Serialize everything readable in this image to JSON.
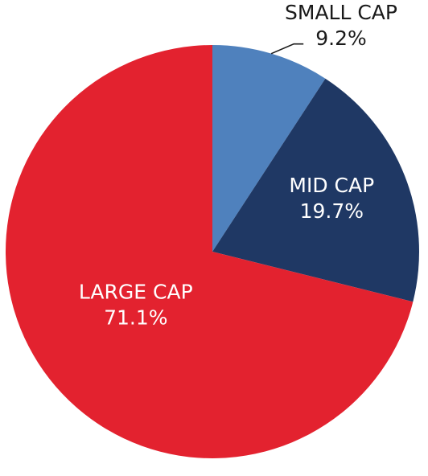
{
  "chart_data": {
    "type": "pie",
    "title": "",
    "slices": [
      {
        "label": "SMALL CAP",
        "value": 9.2,
        "value_label": "9.2%",
        "color": "#4f81bd",
        "label_color": "#1a1a1a",
        "label_placement": "outside-callout"
      },
      {
        "label": "MID CAP",
        "value": 19.7,
        "value_label": "19.7%",
        "color": "#1f3864",
        "label_color": "#ffffff",
        "label_placement": "inside"
      },
      {
        "label": "LARGE CAP",
        "value": 71.1,
        "value_label": "71.1%",
        "color": "#e3222f",
        "label_color": "#ffffff",
        "label_placement": "inside"
      }
    ],
    "start_angle": "12 o'clock",
    "direction": "clockwise",
    "legend": "none"
  }
}
